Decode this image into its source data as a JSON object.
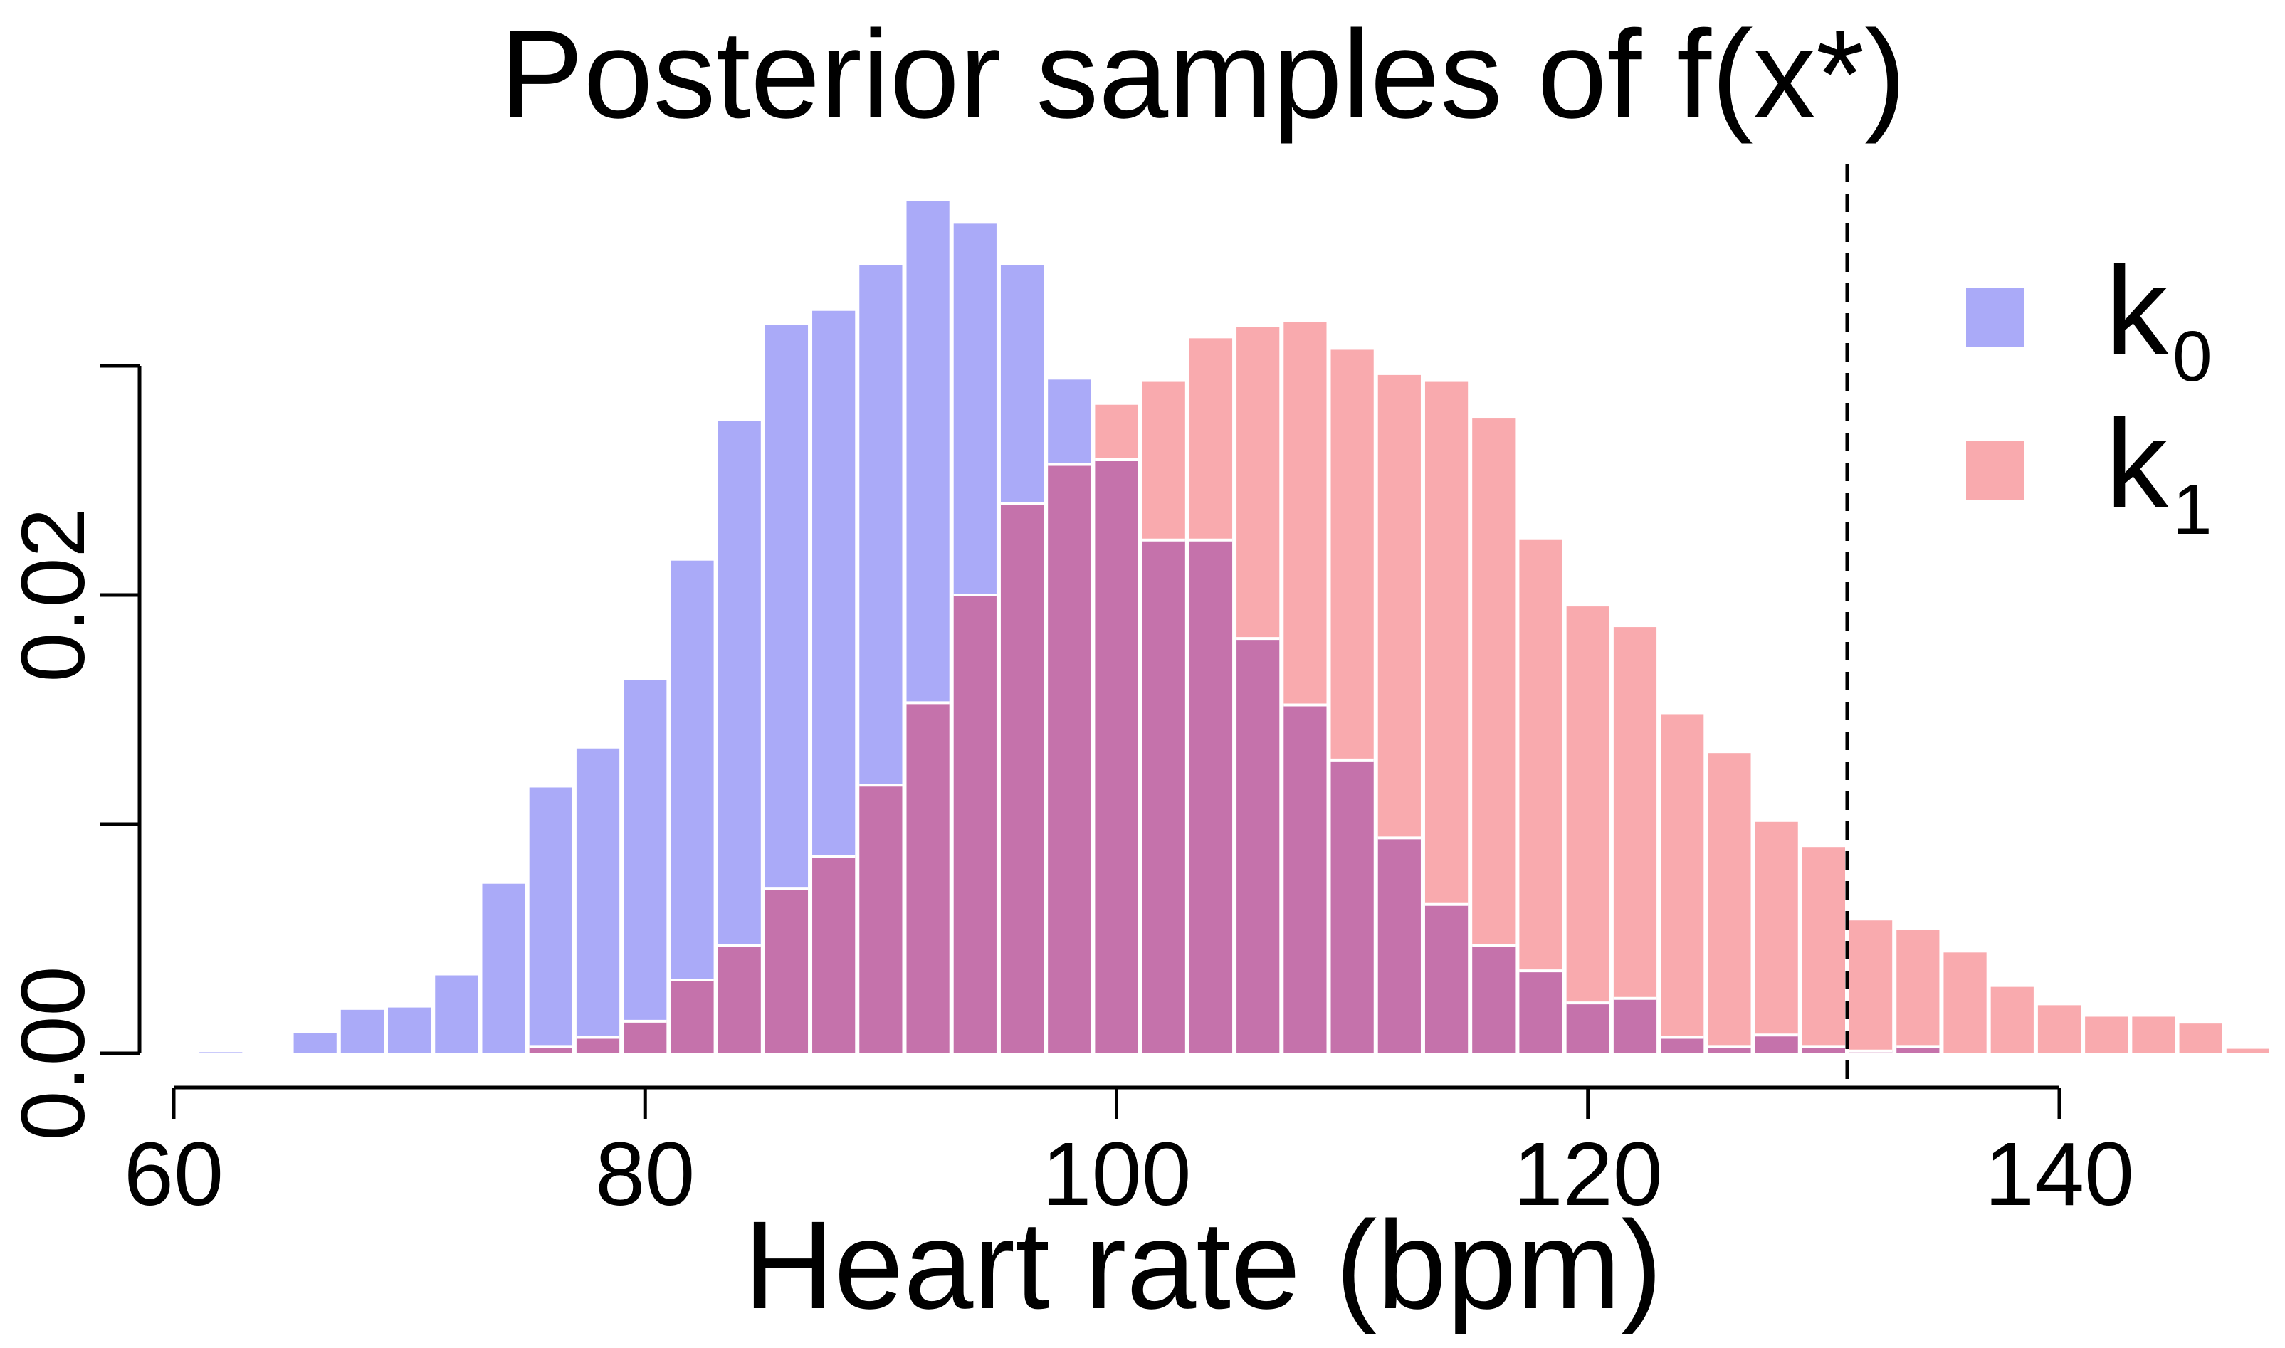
{
  "chart_data": {
    "type": "bar",
    "title": "Posterior samples of f(x*)",
    "xlabel": "Heart rate (bpm)",
    "ylabel": "",
    "xlim": [
      60,
      144
    ],
    "ylim": [
      0,
      0.03
    ],
    "bin_width": 2,
    "x_ticks": [
      60,
      80,
      100,
      120,
      140
    ],
    "x_tick_labels": [
      "60",
      "80",
      "100",
      "120",
      "140"
    ],
    "y_ticks": [
      0,
      0.01,
      0.02,
      0.03
    ],
    "y_tick_labels": [
      "0.00",
      "",
      "0.02",
      ""
    ],
    "vline": 131,
    "legend_position": "top-right",
    "colors": {
      "k0": "#aaaaf8",
      "k1": "#f9aaae",
      "overlap": "#c572ab",
      "vline": "#000000"
    },
    "series": [
      {
        "name": "k",
        "subscript": "0",
        "bins": [
          [
            62,
            5e-05
          ],
          [
            64,
            0.0
          ],
          [
            66,
            0.0009
          ],
          [
            68,
            0.0019
          ],
          [
            70,
            0.002
          ],
          [
            72,
            0.0034
          ],
          [
            74,
            0.0074
          ],
          [
            76,
            0.0116
          ],
          [
            78,
            0.0133
          ],
          [
            80,
            0.0163
          ],
          [
            82,
            0.0215
          ],
          [
            84,
            0.0276
          ],
          [
            86,
            0.0318
          ],
          [
            88,
            0.0324
          ],
          [
            90,
            0.0344
          ],
          [
            92,
            0.0372
          ],
          [
            94,
            0.0362
          ],
          [
            96,
            0.0344
          ],
          [
            98,
            0.0294
          ],
          [
            100,
            0.0259
          ],
          [
            102,
            0.0224
          ],
          [
            104,
            0.0224
          ],
          [
            106,
            0.0181
          ],
          [
            108,
            0.0152
          ],
          [
            110,
            0.0128
          ],
          [
            112,
            0.0094
          ],
          [
            114,
            0.0065
          ],
          [
            116,
            0.0047
          ],
          [
            118,
            0.0036
          ],
          [
            120,
            0.0022
          ],
          [
            122,
            0.0024
          ],
          [
            124,
            0.0007
          ],
          [
            126,
            0.0003
          ],
          [
            128,
            0.0008
          ],
          [
            130,
            0.0003
          ],
          [
            132,
            0.0001
          ],
          [
            134,
            0.0003
          ]
        ]
      },
      {
        "name": "k",
        "subscript": "1",
        "bins": [
          [
            76,
            0.0003
          ],
          [
            78,
            0.0007
          ],
          [
            80,
            0.0014
          ],
          [
            82,
            0.0032
          ],
          [
            84,
            0.0047
          ],
          [
            86,
            0.0072
          ],
          [
            88,
            0.0086
          ],
          [
            90,
            0.0117
          ],
          [
            92,
            0.0153
          ],
          [
            94,
            0.02
          ],
          [
            96,
            0.024
          ],
          [
            98,
            0.0257
          ],
          [
            100,
            0.0283
          ],
          [
            102,
            0.0293
          ],
          [
            104,
            0.0312
          ],
          [
            106,
            0.0317
          ],
          [
            108,
            0.0319
          ],
          [
            110,
            0.0307
          ],
          [
            112,
            0.0296
          ],
          [
            114,
            0.0293
          ],
          [
            116,
            0.0277
          ],
          [
            118,
            0.0224
          ],
          [
            120,
            0.0195
          ],
          [
            122,
            0.0186
          ],
          [
            124,
            0.0148
          ],
          [
            126,
            0.0131
          ],
          [
            128,
            0.0101
          ],
          [
            130,
            0.009
          ],
          [
            132,
            0.0058
          ],
          [
            134,
            0.0054
          ],
          [
            136,
            0.0044
          ],
          [
            138,
            0.0029
          ],
          [
            140,
            0.0021
          ],
          [
            142,
            0.0016
          ],
          [
            144,
            0.0016
          ],
          [
            146,
            0.0013
          ],
          [
            148,
            0.0002
          ]
        ]
      }
    ]
  }
}
